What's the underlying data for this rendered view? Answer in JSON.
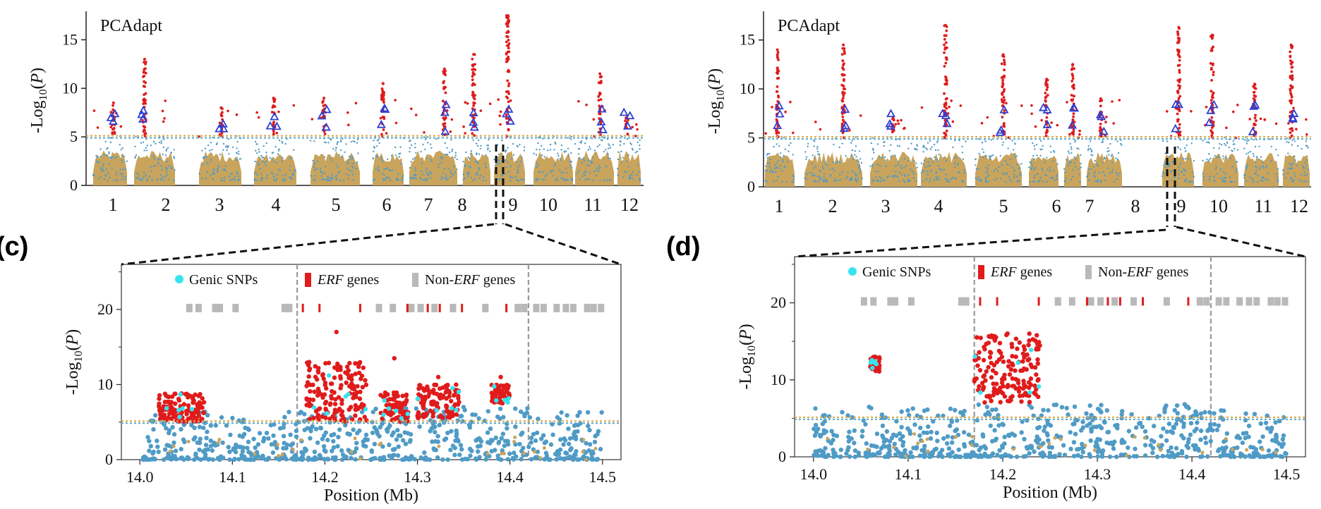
{
  "panel_labels": [
    "(c)",
    "(d)"
  ],
  "colors": {
    "gold": "#c9a45c",
    "blue": "#4f9bc6",
    "red": "#e01b1b",
    "cyan": "#38e3ef",
    "triangle": "#2f3fd0",
    "grey_gene": "#b9b9b9",
    "threshold_gold": "#d9a64a",
    "threshold_blue": "#5ea8c6",
    "divider": "#9a9a9a"
  },
  "chart_data": [
    {
      "id": "top-left",
      "type": "scatter",
      "annotation": "PCAdapt",
      "ylabel": "-Log10(P)",
      "ylim": [
        0,
        17.5
      ],
      "yticks": [
        0,
        5,
        10,
        15
      ],
      "chromosomes": [
        "1",
        "2",
        "3",
        "4",
        "5",
        "6",
        "7",
        "8",
        "9",
        "10",
        "11",
        "12"
      ],
      "threshold": 5,
      "chromosome_peaks": [
        {
          "chr": "1",
          "max_log10p": 8.5
        },
        {
          "chr": "2",
          "max_log10p": 13
        },
        {
          "chr": "3",
          "max_log10p": 8
        },
        {
          "chr": "4",
          "max_log10p": 9
        },
        {
          "chr": "5",
          "max_log10p": 9
        },
        {
          "chr": "6",
          "max_log10p": 10.5
        },
        {
          "chr": "7",
          "max_log10p": 12
        },
        {
          "chr": "8",
          "max_log10p": 13.5
        },
        {
          "chr": "9",
          "max_log10p": 17.5
        },
        {
          "chr": "10",
          "max_log10p": 5
        },
        {
          "chr": "11",
          "max_log10p": 11.5
        },
        {
          "chr": "12",
          "max_log10p": 7
        }
      ]
    },
    {
      "id": "top-right",
      "type": "scatter",
      "annotation": "PCAdapt",
      "ylabel": "-Log10(P)",
      "ylim": [
        0,
        17.5
      ],
      "yticks": [
        0,
        5,
        10,
        15
      ],
      "chromosomes": [
        "1",
        "2",
        "3",
        "4",
        "5",
        "6",
        "7",
        "8",
        "9",
        "10",
        "11",
        "12"
      ],
      "threshold": 5,
      "chromosome_peaks": [
        {
          "chr": "1",
          "max_log10p": 14
        },
        {
          "chr": "2",
          "max_log10p": 14.5
        },
        {
          "chr": "3",
          "max_log10p": 7
        },
        {
          "chr": "4",
          "max_log10p": 16.5
        },
        {
          "chr": "5",
          "max_log10p": 13.5
        },
        {
          "chr": "6",
          "max_log10p": 11
        },
        {
          "chr": "7",
          "max_log10p": 12.5
        },
        {
          "chr": "8",
          "max_log10p": 9
        },
        {
          "chr": "9",
          "max_log10p": 16.3
        },
        {
          "chr": "10",
          "max_log10p": 15.5
        },
        {
          "chr": "11",
          "max_log10p": 10.5
        },
        {
          "chr": "12",
          "max_log10p": 14.5
        }
      ]
    },
    {
      "id": "zoom-c",
      "type": "scatter",
      "panel": "(c)",
      "xlabel": "Position (Mb)",
      "ylabel": "-Log10(P)",
      "xlim": [
        13.98,
        14.52
      ],
      "ylim": [
        0,
        26
      ],
      "xticks": [
        14.0,
        14.1,
        14.2,
        14.3,
        14.4,
        14.5
      ],
      "yticks": [
        0,
        10,
        20
      ],
      "threshold": 5,
      "dividers_mb": [
        14.17,
        14.42
      ],
      "legend": [
        {
          "label": "Genic SNPs",
          "color": "#38e3ef",
          "shape": "circle"
        },
        {
          "label_italic": "ERF",
          "label_rest": " genes",
          "color": "#e01b1b",
          "shape": "bar"
        },
        {
          "label_prefix": "Non-",
          "label_italic": "ERF",
          "label_rest": " genes",
          "color": "#b9b9b9",
          "shape": "bar"
        }
      ],
      "erf_genes_mb": [
        14.175,
        14.193,
        14.237,
        14.288,
        14.31,
        14.323,
        14.347,
        14.395
      ],
      "nonerf_genes_mb": [
        14.05,
        14.06,
        14.078,
        14.083,
        14.1,
        14.153,
        14.158,
        14.255,
        14.27,
        14.29,
        14.3,
        14.315,
        14.335,
        14.37,
        14.405,
        14.412,
        14.425,
        14.433,
        14.447,
        14.457,
        14.465,
        14.48,
        14.487,
        14.495
      ],
      "clusters": [
        {
          "from": 14.18,
          "to": 14.245,
          "min": 5,
          "max": 13,
          "peak": 17,
          "color": "red"
        },
        {
          "from": 14.26,
          "to": 14.29,
          "min": 5,
          "max": 9,
          "peak": 13.5,
          "color": "red"
        },
        {
          "from": 14.3,
          "to": 14.345,
          "min": 5.5,
          "max": 10,
          "peak": 11,
          "color": "red"
        },
        {
          "from": 14.38,
          "to": 14.4,
          "min": 7.5,
          "max": 10,
          "peak": 11,
          "color": "red"
        },
        {
          "from": 14.02,
          "to": 14.07,
          "min": 5,
          "max": 8.8,
          "peak": 8.8,
          "color": "red"
        }
      ]
    },
    {
      "id": "zoom-d",
      "type": "scatter",
      "panel": "(d)",
      "xlabel": "Position (Mb)",
      "ylabel": "-Log10(P)",
      "xlim": [
        13.98,
        14.52
      ],
      "ylim": [
        0,
        26
      ],
      "xticks": [
        14.0,
        14.1,
        14.2,
        14.3,
        14.4,
        14.5
      ],
      "yticks": [
        0,
        10,
        20
      ],
      "threshold": 5,
      "dividers_mb": [
        14.17,
        14.42
      ],
      "legend": [
        {
          "label": "Genic SNPs",
          "color": "#38e3ef",
          "shape": "circle"
        },
        {
          "label_italic": "ERF",
          "label_rest": " genes",
          "color": "#e01b1b",
          "shape": "bar"
        },
        {
          "label_prefix": "Non-",
          "label_italic": "ERF",
          "label_rest": " genes",
          "color": "#b9b9b9",
          "shape": "bar"
        }
      ],
      "erf_genes_mb": [
        14.175,
        14.193,
        14.237,
        14.288,
        14.31,
        14.323,
        14.347,
        14.395
      ],
      "nonerf_genes_mb": [
        14.05,
        14.06,
        14.078,
        14.083,
        14.1,
        14.153,
        14.158,
        14.255,
        14.27,
        14.29,
        14.3,
        14.315,
        14.335,
        14.37,
        14.405,
        14.412,
        14.425,
        14.433,
        14.447,
        14.457,
        14.465,
        14.48,
        14.487,
        14.495
      ],
      "clusters": [
        {
          "from": 14.17,
          "to": 14.24,
          "min": 7,
          "max": 16,
          "peak": 16,
          "color": "red"
        },
        {
          "from": 14.06,
          "to": 14.07,
          "min": 11,
          "max": 13,
          "peak": 13,
          "color": "red"
        }
      ]
    }
  ]
}
